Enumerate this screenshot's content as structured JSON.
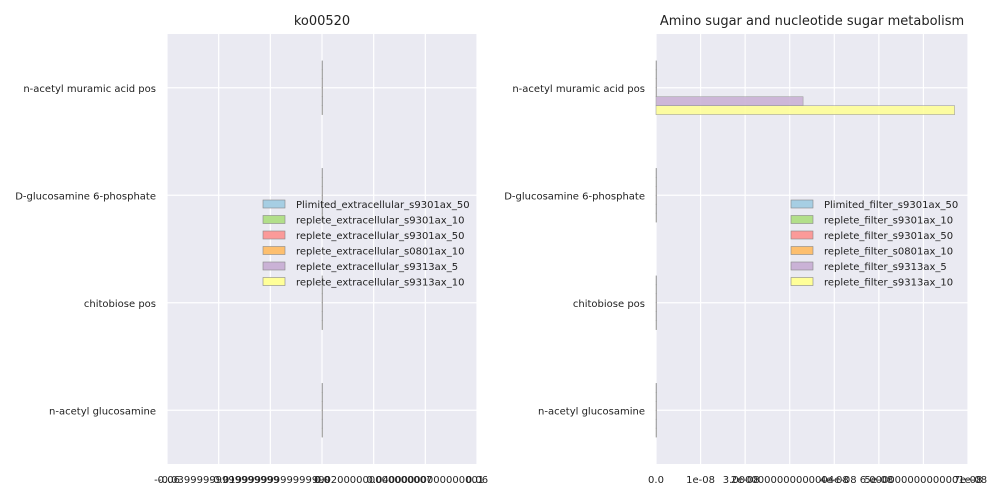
{
  "chart_data": [
    {
      "type": "bar",
      "orientation": "horizontal",
      "title": "ko00520",
      "categories": [
        "n-acetyl muramic acid pos",
        "D-glucosamine 6-phosphate",
        "chitobiose pos",
        "n-acetyl glucosamine"
      ],
      "xlim": [
        -0.06,
        0.06
      ],
      "xticks": [
        -0.06,
        -0.04,
        -0.02,
        0.0,
        0.02,
        0.04,
        0.06
      ],
      "xtick_labels": [
        "-0.06",
        "-0.03999999999999999",
        "-0.01999999999999999",
        "0.0",
        "0.02000000000000007",
        "0.04000000000000001",
        "0.06"
      ],
      "legend": [
        "Plimited_extracellular_s9301ax_50",
        "replete_extracellular_s9301ax_10",
        "replete_extracellular_s9301ax_50",
        "replete_extracellular_s0801ax_10",
        "replete_extracellular_s9313ax_5",
        "replete_extracellular_s9313ax_10"
      ],
      "legend_position": "center-right",
      "series": [
        {
          "name": "Plimited_extracellular_s9301ax_50",
          "color": "#a6cee3",
          "values": [
            0,
            0,
            0,
            0
          ]
        },
        {
          "name": "replete_extracellular_s9301ax_10",
          "color": "#b2df8a",
          "values": [
            0,
            0,
            0,
            0
          ]
        },
        {
          "name": "replete_extracellular_s9301ax_50",
          "color": "#fb9a99",
          "values": [
            0,
            0,
            0,
            0
          ]
        },
        {
          "name": "replete_extracellular_s0801ax_10",
          "color": "#fdbf6f",
          "values": [
            0,
            0,
            0,
            0
          ]
        },
        {
          "name": "replete_extracellular_s9313ax_5",
          "color": "#cab2d6",
          "values": [
            0,
            0,
            0,
            0
          ]
        },
        {
          "name": "replete_extracellular_s9313ax_10",
          "color": "#ffff99",
          "values": [
            0,
            0,
            0,
            0
          ]
        }
      ]
    },
    {
      "type": "bar",
      "orientation": "horizontal",
      "title": "Amino sugar and nucleotide sugar metabolism",
      "categories": [
        "n-acetyl muramic acid pos",
        "D-glucosamine 6-phosphate",
        "chitobiose pos",
        "n-acetyl glucosamine"
      ],
      "xlim": [
        0,
        7e-08
      ],
      "xticks": [
        0,
        1e-08,
        2e-08,
        3e-08,
        4e-08,
        5e-08,
        6e-08,
        7e-08
      ],
      "xtick_labels": [
        "0.0",
        "1e-08",
        "2e-08",
        "3.0000000000000004e-08",
        "4e-08",
        "5e-08",
        "6.000000000000001e-08",
        "7e-08"
      ],
      "legend": [
        "Plimited_filter_s9301ax_50",
        "replete_filter_s9301ax_10",
        "replete_filter_s9301ax_50",
        "replete_filter_s0801ax_10",
        "replete_filter_s9313ax_5",
        "replete_filter_s9313ax_10"
      ],
      "legend_position": "center-right",
      "series": [
        {
          "name": "Plimited_filter_s9301ax_50",
          "color": "#a6cee3",
          "values": [
            0,
            0,
            0,
            0
          ]
        },
        {
          "name": "replete_filter_s9301ax_10",
          "color": "#b2df8a",
          "values": [
            0,
            0,
            0,
            0
          ]
        },
        {
          "name": "replete_filter_s9301ax_50",
          "color": "#fb9a99",
          "values": [
            0,
            0,
            0,
            0
          ]
        },
        {
          "name": "replete_filter_s0801ax_10",
          "color": "#fdbf6f",
          "values": [
            0,
            0,
            0,
            0
          ]
        },
        {
          "name": "replete_filter_s9313ax_5",
          "color": "#cab2d6",
          "values": [
            0,
            0,
            0,
            3.3e-08
          ]
        },
        {
          "name": "replete_filter_s9313ax_10",
          "color": "#ffff99",
          "values": [
            0,
            0,
            0,
            6.7e-08
          ]
        }
      ]
    }
  ]
}
